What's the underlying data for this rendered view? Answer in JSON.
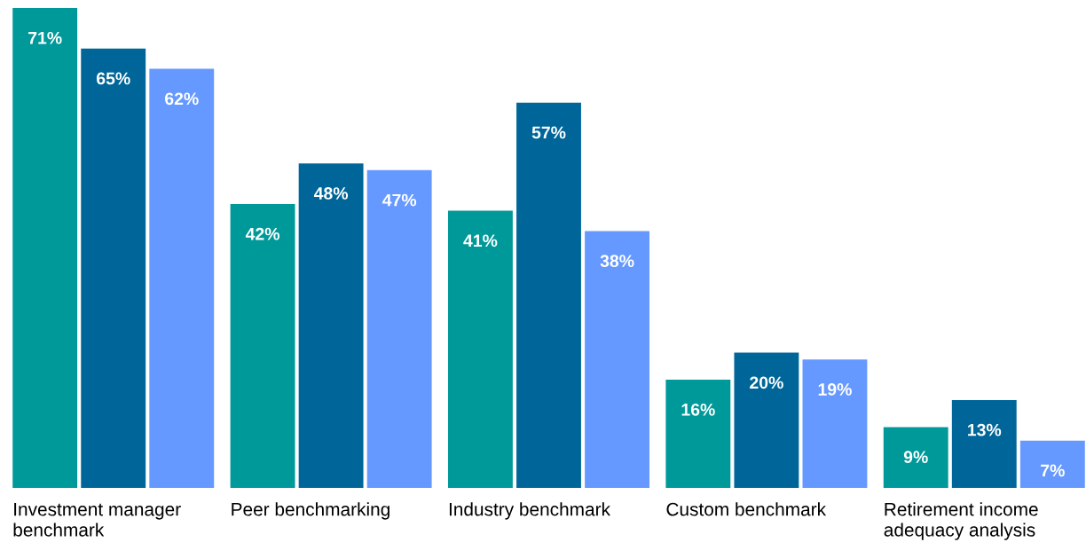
{
  "chart_data": {
    "type": "bar",
    "categories": [
      "Investment manager benchmark",
      "Peer benchmarking",
      "Industry benchmark",
      "Custom benchmark",
      "Retirement income adequacy analysis"
    ],
    "series": [
      {
        "color": "#009999",
        "values": [
          71,
          42,
          41,
          16,
          9
        ],
        "value_labels": [
          "71%",
          "42%",
          "41%",
          "16%",
          "9%"
        ]
      },
      {
        "color": "#006699",
        "values": [
          65,
          48,
          57,
          20,
          13
        ],
        "value_labels": [
          "65%",
          "48%",
          "57%",
          "20%",
          "13%"
        ]
      },
      {
        "color": "#6699ff",
        "values": [
          62,
          47,
          38,
          19,
          7
        ],
        "value_labels": [
          "62%",
          "47%",
          "38%",
          "19%",
          "7%"
        ]
      }
    ],
    "data_labels": true
  }
}
